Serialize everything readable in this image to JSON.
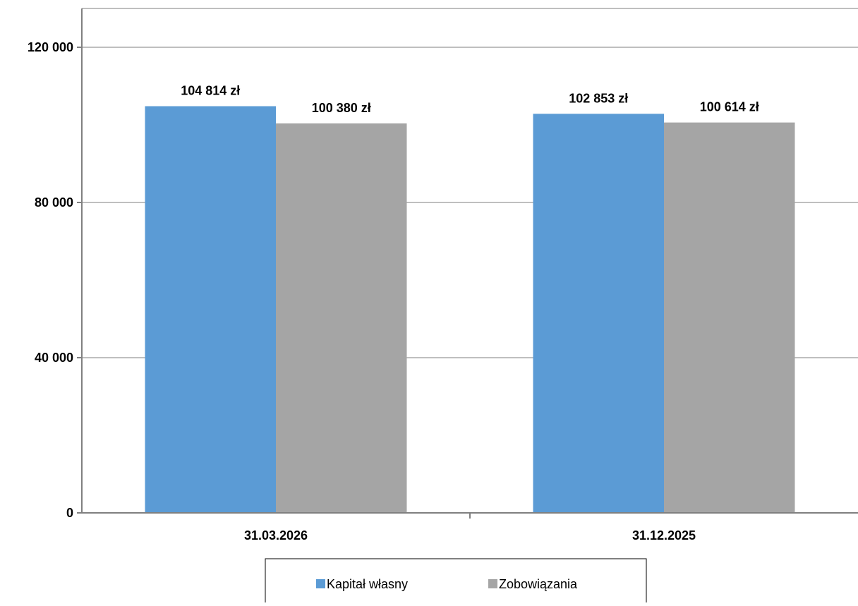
{
  "chart_data": {
    "type": "bar",
    "categories": [
      "31.03.2026",
      "31.12.2025"
    ],
    "series": [
      {
        "name": "Kapitał własny",
        "values": [
          104814,
          102853
        ],
        "labels": [
          "104 814 zł",
          "102 853 zł"
        ],
        "color": "#5b9bd5"
      },
      {
        "name": "Zobowiązania",
        "values": [
          100380,
          100614
        ],
        "labels": [
          "100 380 zł",
          "100 614 zł"
        ],
        "color": "#a5a5a5"
      }
    ],
    "yticks": [
      {
        "value": 0,
        "label": "0"
      },
      {
        "value": 40000,
        "label": "40 000"
      },
      {
        "value": 80000,
        "label": "80 000"
      },
      {
        "value": 120000,
        "label": "120 000"
      }
    ],
    "ylim": [
      0,
      130000
    ],
    "grid": true,
    "legend_position": "bottom",
    "gridline_color": "#bfbfbf",
    "axis_color": "#808080"
  }
}
